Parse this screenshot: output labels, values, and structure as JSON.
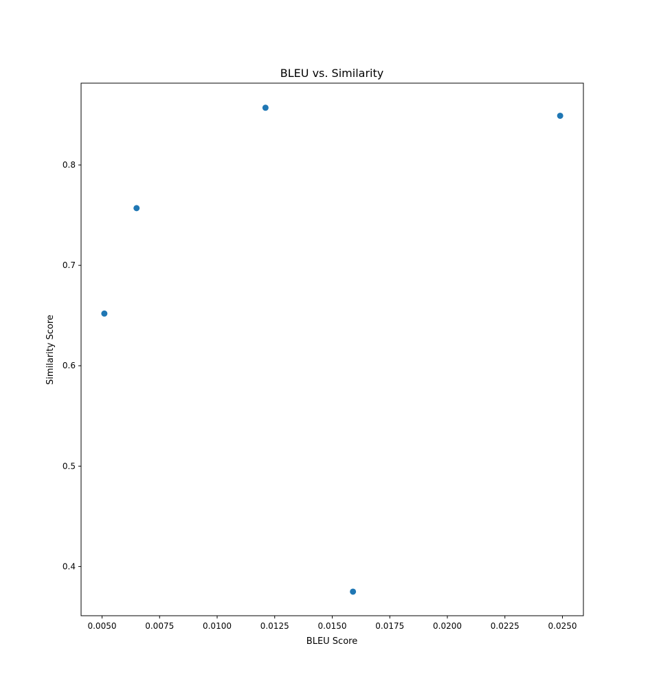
{
  "chart_data": {
    "type": "scatter",
    "title": "BLEU vs. Similarity",
    "xlabel": "BLEU Score",
    "ylabel": "Similarity Score",
    "xlim": [
      0.00409,
      0.02591
    ],
    "ylim": [
      0.351,
      0.8815
    ],
    "xticks": [
      0.005,
      0.0075,
      0.01,
      0.0125,
      0.015,
      0.0175,
      0.02,
      0.0225,
      0.025
    ],
    "xtick_labels": [
      "0.0050",
      "0.0075",
      "0.0100",
      "0.0125",
      "0.0150",
      "0.0175",
      "0.0200",
      "0.0225",
      "0.0250"
    ],
    "yticks": [
      0.4,
      0.5,
      0.6,
      0.7,
      0.8
    ],
    "ytick_labels": [
      "0.4",
      "0.5",
      "0.6",
      "0.7",
      "0.8"
    ],
    "grid": false,
    "marker_color": "#1f77b4",
    "points": [
      {
        "x": 0.0051,
        "y": 0.652
      },
      {
        "x": 0.0065,
        "y": 0.757
      },
      {
        "x": 0.0121,
        "y": 0.857
      },
      {
        "x": 0.0159,
        "y": 0.375
      },
      {
        "x": 0.0249,
        "y": 0.849
      }
    ]
  }
}
